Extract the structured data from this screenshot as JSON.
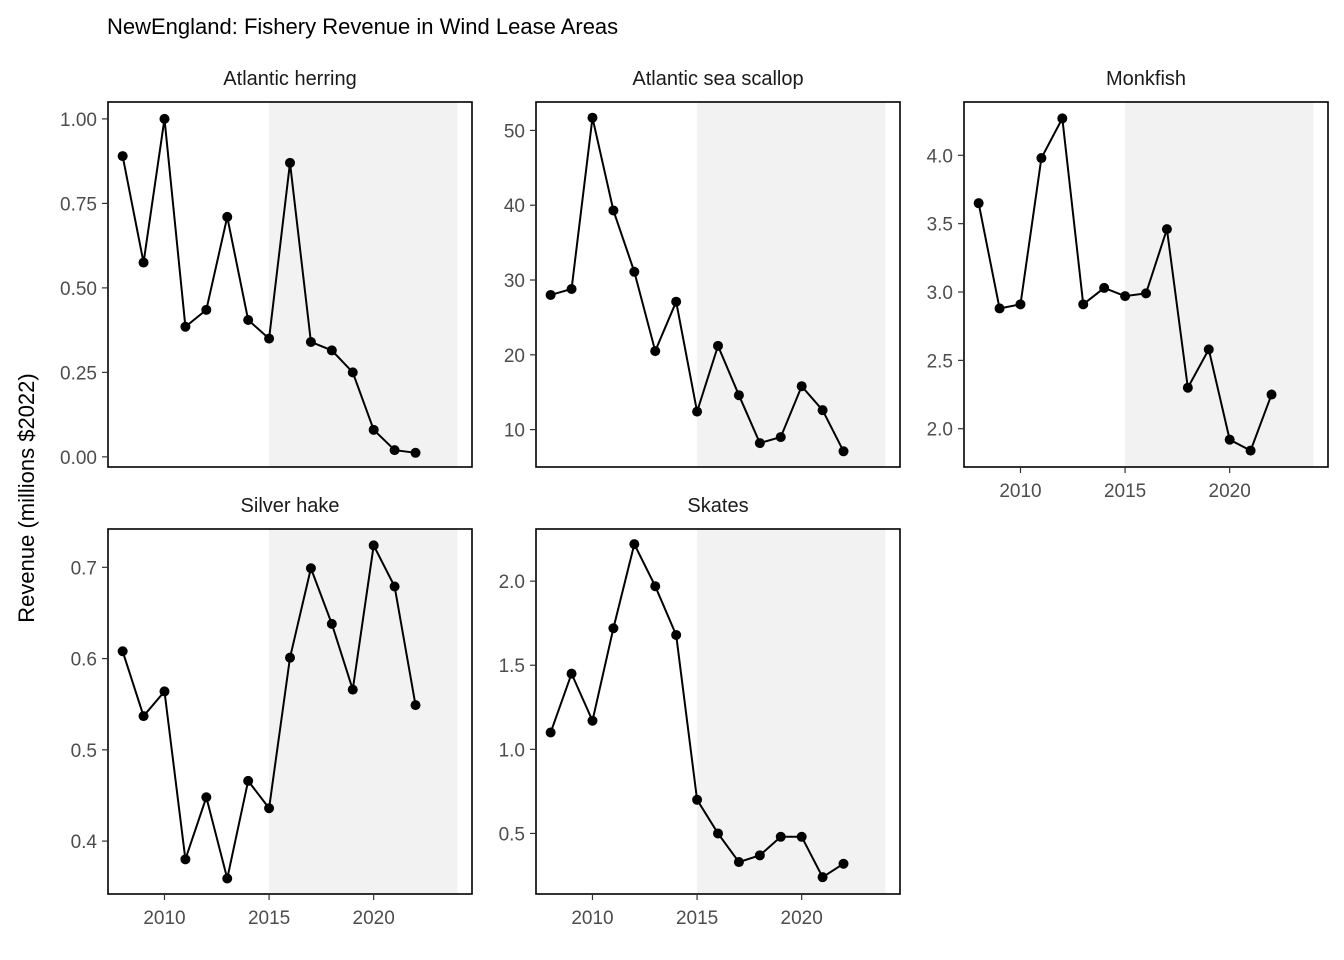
{
  "chart_data": {
    "type": "line",
    "title": "NewEngland: Fishery Revenue in Wind Lease Areas",
    "ylabel": "Revenue (millions $2022)",
    "xlabel": "",
    "shaded_region": [
      2015,
      2024
    ],
    "colors": {
      "line": "#000000",
      "point": "#000000",
      "shade": "#f2f2f2",
      "frame": "#000000",
      "tick_text": "#4d4d4d"
    },
    "x_ticks": [
      2010,
      2015,
      2020
    ],
    "x_tick_labels": [
      "2010",
      "2015",
      "2020"
    ],
    "panels": [
      {
        "name": "Atlantic herring",
        "xlim": [
          2007.3,
          2024.7
        ],
        "ylim": [
          -0.03,
          1.05
        ],
        "y_ticks": [
          0.0,
          0.25,
          0.5,
          0.75,
          1.0
        ],
        "y_tick_labels": [
          "0.00",
          "0.25",
          "0.50",
          "0.75",
          "1.00"
        ],
        "show_x_axis": false,
        "x": [
          2008,
          2009,
          2010,
          2011,
          2012,
          2013,
          2014,
          2015,
          2016,
          2017,
          2018,
          2019,
          2020,
          2021,
          2022
        ],
        "values": [
          0.89,
          0.575,
          1.0,
          0.385,
          0.435,
          0.71,
          0.405,
          0.35,
          0.87,
          0.34,
          0.315,
          0.25,
          0.08,
          0.02,
          0.012
        ]
      },
      {
        "name": "Atlantic sea scallop",
        "xlim": [
          2007.3,
          2024.7
        ],
        "ylim": [
          5.0,
          53.8
        ],
        "y_ticks": [
          10,
          20,
          30,
          40,
          50
        ],
        "y_tick_labels": [
          "10",
          "20",
          "30",
          "40",
          "50"
        ],
        "show_x_axis": false,
        "x": [
          2008,
          2009,
          2010,
          2011,
          2012,
          2013,
          2014,
          2015,
          2016,
          2017,
          2018,
          2019,
          2020,
          2021,
          2022
        ],
        "values": [
          28.0,
          28.8,
          51.7,
          39.3,
          31.1,
          20.5,
          27.1,
          12.4,
          21.2,
          14.6,
          8.2,
          9.0,
          15.8,
          12.6,
          7.1
        ]
      },
      {
        "name": "Monkfish",
        "xlim": [
          2007.3,
          2024.7
        ],
        "ylim": [
          1.72,
          4.39
        ],
        "y_ticks": [
          2.0,
          2.5,
          3.0,
          3.5,
          4.0
        ],
        "y_tick_labels": [
          "2.0",
          "2.5",
          "3.0",
          "3.5",
          "4.0"
        ],
        "show_x_axis": true,
        "x": [
          2008,
          2009,
          2010,
          2011,
          2012,
          2013,
          2014,
          2015,
          2016,
          2017,
          2018,
          2019,
          2020,
          2021,
          2022
        ],
        "values": [
          3.65,
          2.88,
          2.91,
          3.98,
          4.27,
          2.91,
          3.03,
          2.97,
          2.99,
          3.46,
          2.3,
          2.58,
          1.92,
          1.84,
          2.25
        ]
      },
      {
        "name": "Silver hake",
        "xlim": [
          2007.3,
          2024.7
        ],
        "ylim": [
          0.342,
          0.742
        ],
        "y_ticks": [
          0.4,
          0.5,
          0.6,
          0.7
        ],
        "y_tick_labels": [
          "0.4",
          "0.5",
          "0.6",
          "0.7"
        ],
        "show_x_axis": true,
        "x": [
          2008,
          2009,
          2010,
          2011,
          2012,
          2013,
          2014,
          2015,
          2016,
          2017,
          2018,
          2019,
          2020,
          2021,
          2022
        ],
        "values": [
          0.608,
          0.537,
          0.564,
          0.38,
          0.448,
          0.359,
          0.466,
          0.436,
          0.601,
          0.699,
          0.638,
          0.566,
          0.724,
          0.679,
          0.549
        ]
      },
      {
        "name": "Skates",
        "xlim": [
          2007.3,
          2024.7
        ],
        "ylim": [
          0.14,
          2.31
        ],
        "y_ticks": [
          0.5,
          1.0,
          1.5,
          2.0
        ],
        "y_tick_labels": [
          "0.5",
          "1.0",
          "1.5",
          "2.0"
        ],
        "show_x_axis": true,
        "x": [
          2008,
          2009,
          2010,
          2011,
          2012,
          2013,
          2014,
          2015,
          2016,
          2017,
          2018,
          2019,
          2020,
          2021,
          2022
        ],
        "values": [
          1.1,
          1.45,
          1.17,
          1.72,
          2.22,
          1.97,
          1.68,
          0.7,
          0.5,
          0.33,
          0.37,
          0.48,
          0.48,
          0.24,
          0.32
        ]
      }
    ]
  }
}
